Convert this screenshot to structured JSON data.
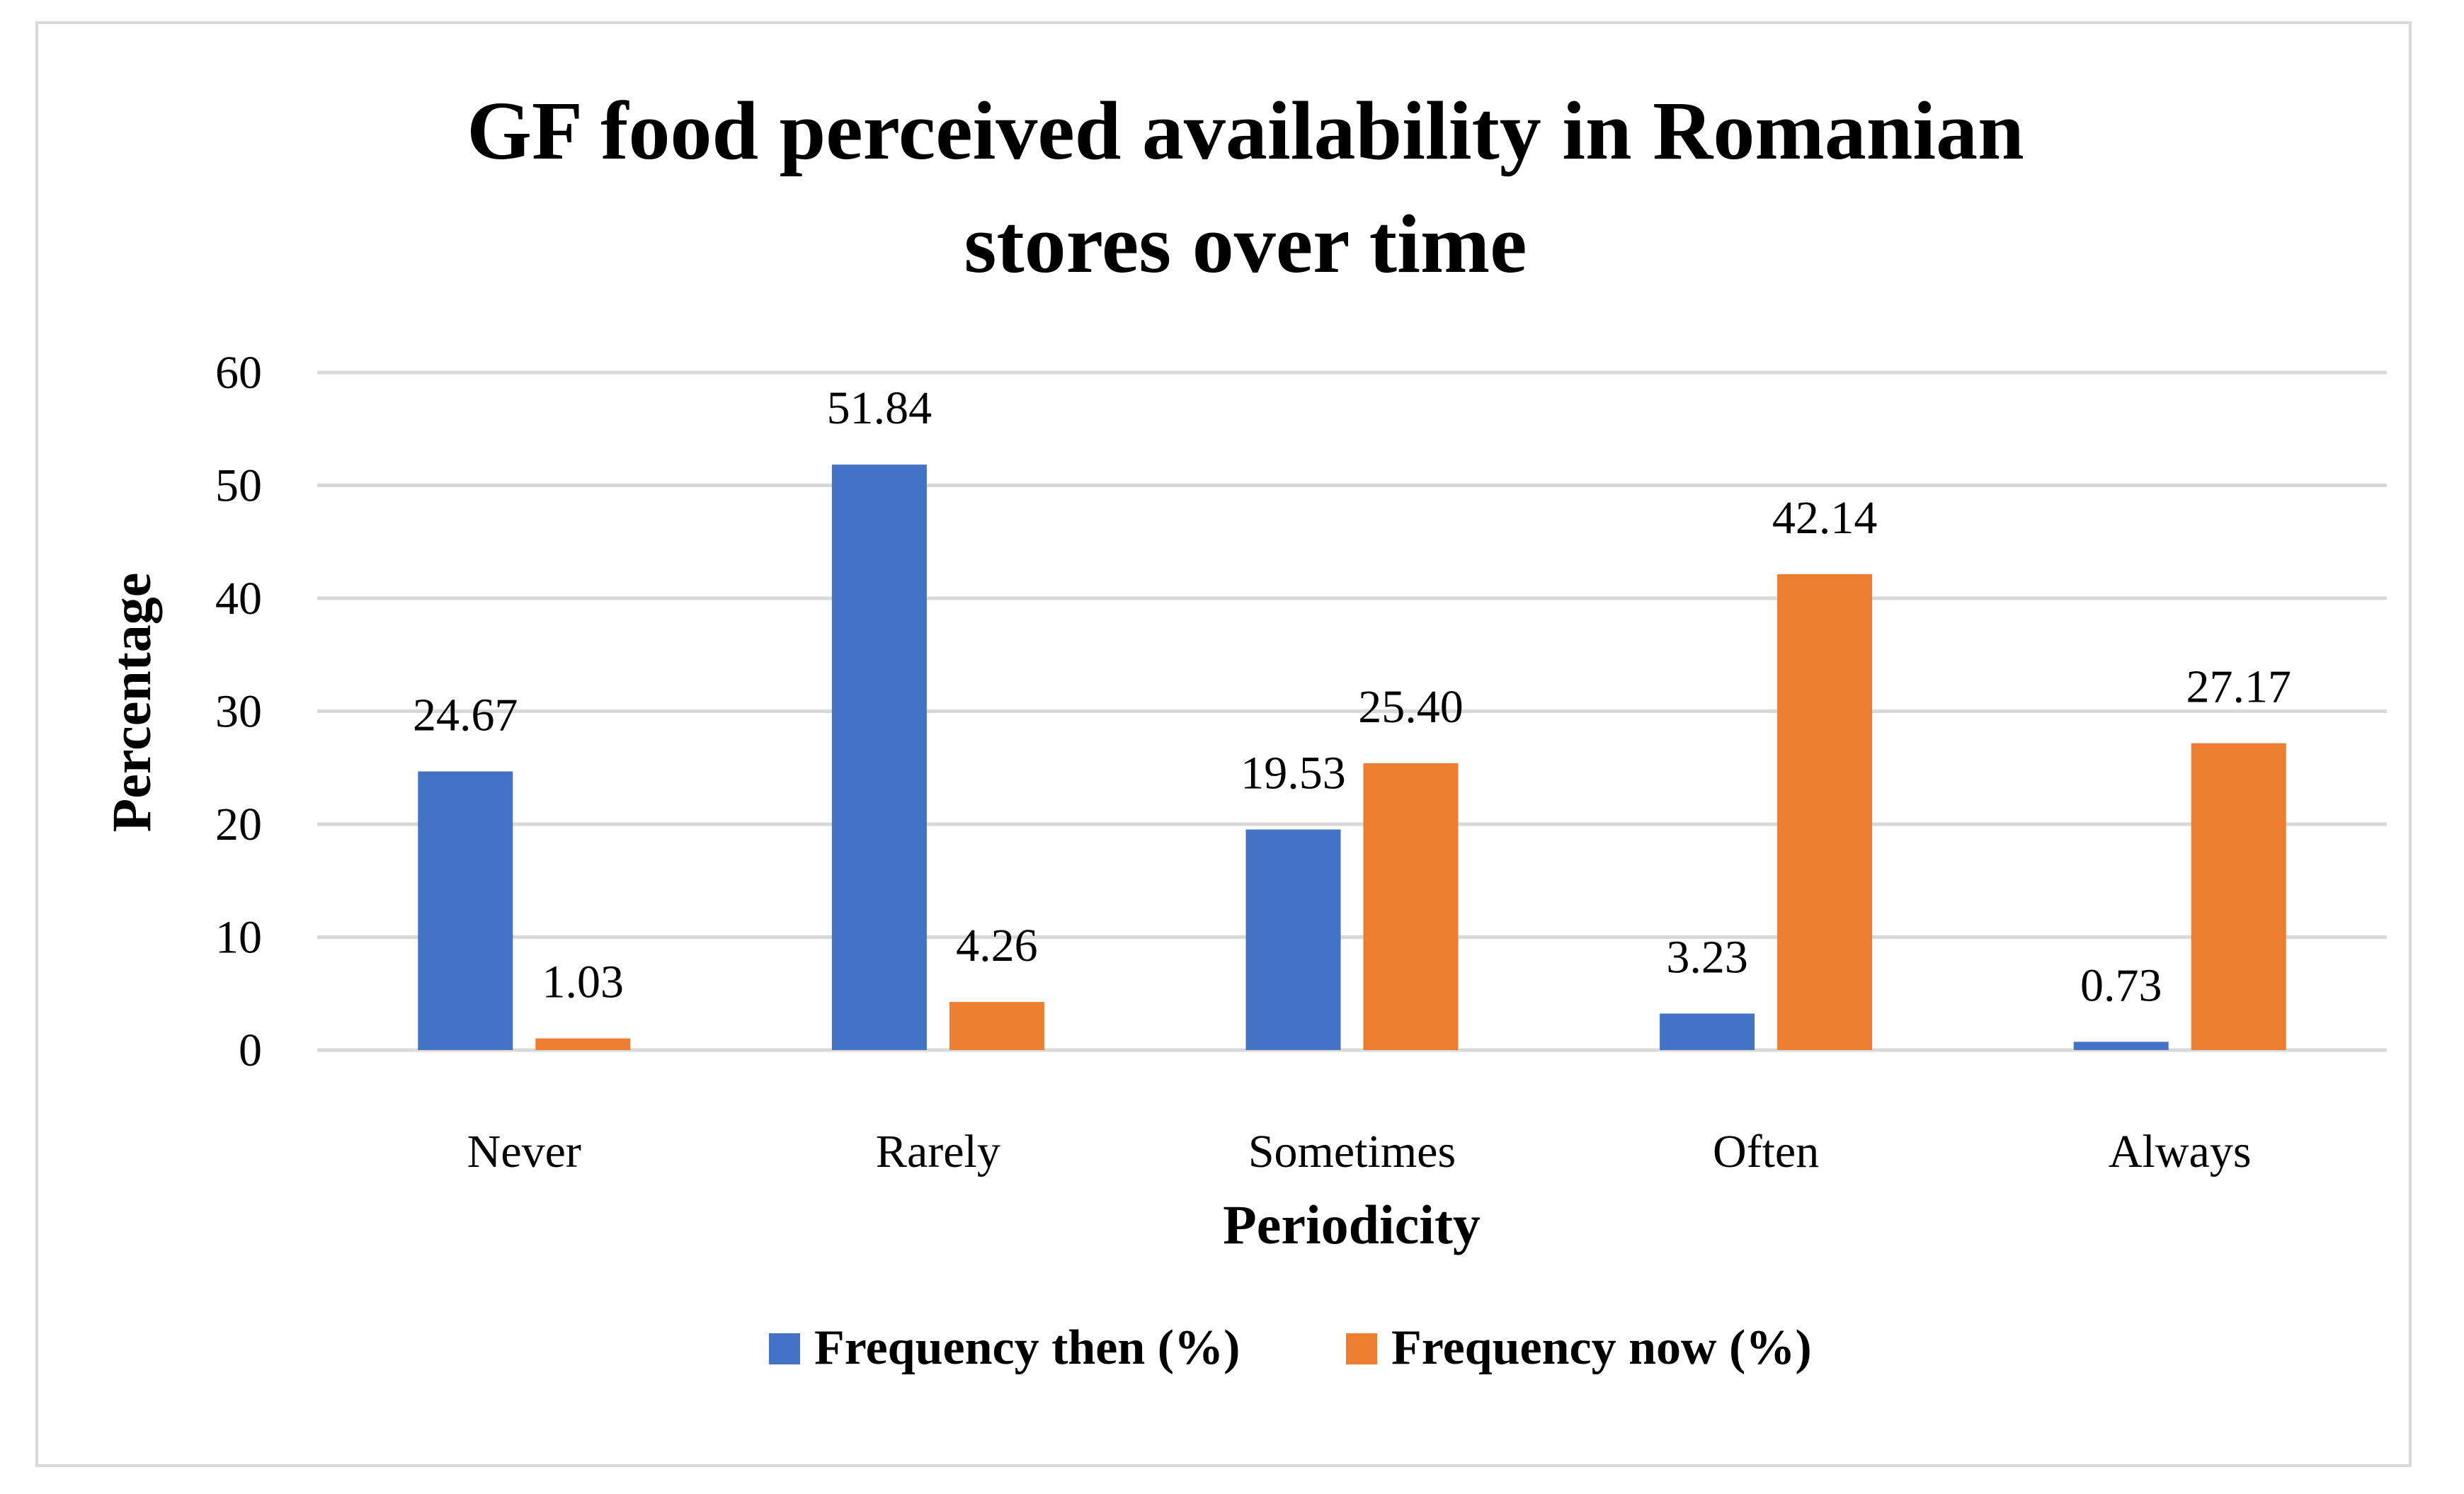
{
  "chart_data": {
    "type": "bar",
    "title_lines": [
      "GF food perceived availability in Romanian",
      "stores over time"
    ],
    "categories": [
      "Never",
      "Rarely",
      "Sometimes",
      "Often",
      "Always"
    ],
    "series": [
      {
        "name": "Frequency then (%)",
        "color": "#4472c4",
        "values": [
          24.67,
          51.84,
          19.53,
          3.23,
          0.73
        ],
        "labels": [
          "24.67",
          "51.84",
          "19.53",
          "3.23",
          "0.73"
        ]
      },
      {
        "name": "Frequency now (%)",
        "color": "#ed7d31",
        "values": [
          1.03,
          4.26,
          25.4,
          42.14,
          27.17
        ],
        "labels": [
          "1.03",
          "4.26",
          "25.40",
          "42.14",
          "27.17"
        ]
      }
    ],
    "xlabel": "Periodicity",
    "ylabel": "Percentage",
    "ylim": [
      0,
      60
    ],
    "yticks": [
      0,
      10,
      20,
      30,
      40,
      50,
      60
    ],
    "grid": true,
    "legend_position": "bottom",
    "gridline_color": "#d9d9d9"
  }
}
